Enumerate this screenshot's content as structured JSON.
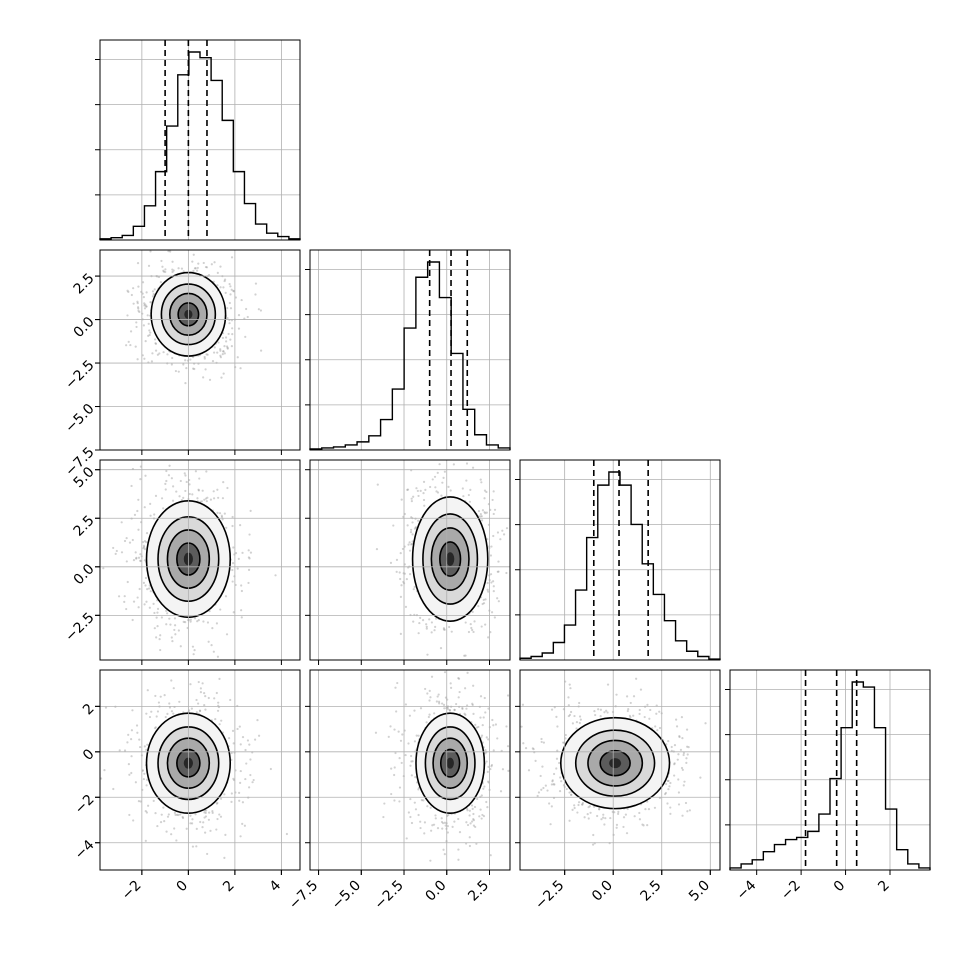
{
  "chart_data": {
    "type": "corner",
    "description_free": true,
    "panels": {
      "diagonal": [
        {
          "param_index": 0,
          "type": "step-histogram",
          "range": [
            -3.8,
            4.8
          ],
          "bin_values": [
            1,
            2,
            4,
            12,
            30,
            60,
            100,
            145,
            165,
            160,
            140,
            105,
            60,
            32,
            14,
            6,
            3,
            1
          ],
          "quantile_lines": [
            -1.0,
            0.0,
            0.8
          ],
          "x_ticks": [
            -2,
            0,
            2,
            4
          ],
          "x_tick_labels": [
            "−2",
            "0",
            "2",
            "4"
          ]
        },
        {
          "param_index": 1,
          "type": "step-histogram",
          "range": [
            -8.0,
            3.7
          ],
          "bin_values": [
            1,
            2,
            3,
            5,
            8,
            14,
            30,
            60,
            120,
            170,
            185,
            150,
            95,
            40,
            15,
            5,
            2
          ],
          "quantile_lines": [
            -1.0,
            0.25,
            1.2
          ],
          "x_ticks": [
            -7.5,
            -5.0,
            -2.5,
            0.0,
            2.5
          ],
          "x_tick_labels": [
            "−7.5",
            "−5.0",
            "−2.5",
            "0.0",
            "2.5"
          ]
        },
        {
          "param_index": 2,
          "type": "step-histogram",
          "range": [
            -4.8,
            5.5
          ],
          "bin_values": [
            2,
            4,
            8,
            20,
            40,
            80,
            140,
            200,
            215,
            200,
            155,
            110,
            75,
            45,
            22,
            10,
            4,
            1
          ],
          "quantile_lines": [
            -1.0,
            0.3,
            1.8
          ],
          "x_ticks": [
            -2.5,
            0.0,
            2.5,
            5.0
          ],
          "x_tick_labels": [
            "−2.5",
            "0.0",
            "2.5",
            "5.0"
          ]
        },
        {
          "param_index": 3,
          "type": "step-histogram",
          "range": [
            -5.2,
            3.8
          ],
          "bin_values": [
            2,
            6,
            10,
            18,
            25,
            30,
            32,
            38,
            55,
            90,
            140,
            185,
            180,
            140,
            60,
            20,
            6,
            2
          ],
          "quantile_lines": [
            -1.8,
            -0.4,
            0.5
          ],
          "x_ticks": [
            -4,
            -2,
            0,
            2
          ],
          "x_tick_labels": [
            "−4",
            "−2",
            "0",
            "2"
          ]
        }
      ],
      "scatter_density": [
        {
          "row": 1,
          "col": 0,
          "center": [
            0.0,
            0.3
          ],
          "spread": [
            0.8,
            1.2
          ]
        },
        {
          "row": 2,
          "col": 0,
          "center": [
            0.0,
            0.4
          ],
          "spread": [
            0.9,
            1.5
          ]
        },
        {
          "row": 2,
          "col": 1,
          "center": [
            0.2,
            0.4
          ],
          "spread": [
            1.1,
            1.6
          ]
        },
        {
          "row": 3,
          "col": 0,
          "center": [
            0.0,
            -0.5
          ],
          "spread": [
            0.9,
            1.1
          ]
        },
        {
          "row": 3,
          "col": 1,
          "center": [
            0.2,
            -0.5
          ],
          "spread": [
            1.0,
            1.1
          ]
        },
        {
          "row": 3,
          "col": 2,
          "center": [
            0.1,
            -0.5
          ],
          "spread": [
            1.4,
            1.0
          ]
        }
      ],
      "y_axes": [
        {
          "row": 1,
          "range": [
            -7.5,
            4.0
          ],
          "ticks": [
            2.5,
            0.0,
            -2.5,
            -5.0,
            -7.5
          ],
          "tick_labels": [
            "2.5",
            "0.0",
            "−2.5",
            "−5.0",
            "−7.5"
          ]
        },
        {
          "row": 2,
          "range": [
            -4.8,
            5.5
          ],
          "ticks": [
            5.0,
            2.5,
            0.0,
            -2.5
          ],
          "tick_labels": [
            "5.0",
            "2.5",
            "0.0",
            "−2.5"
          ]
        },
        {
          "row": 3,
          "range": [
            -5.2,
            3.6
          ],
          "ticks": [
            2,
            0,
            -2,
            -4
          ],
          "tick_labels": [
            "2",
            "0",
            "−2",
            "−4"
          ]
        }
      ],
      "grid": true
    }
  },
  "colors": {
    "line": "#000000",
    "grid": "#b0b0b0",
    "scatter": "#9a9a9a",
    "density_dark": "#1a1a1a",
    "density_light": "#f3f3f3"
  }
}
